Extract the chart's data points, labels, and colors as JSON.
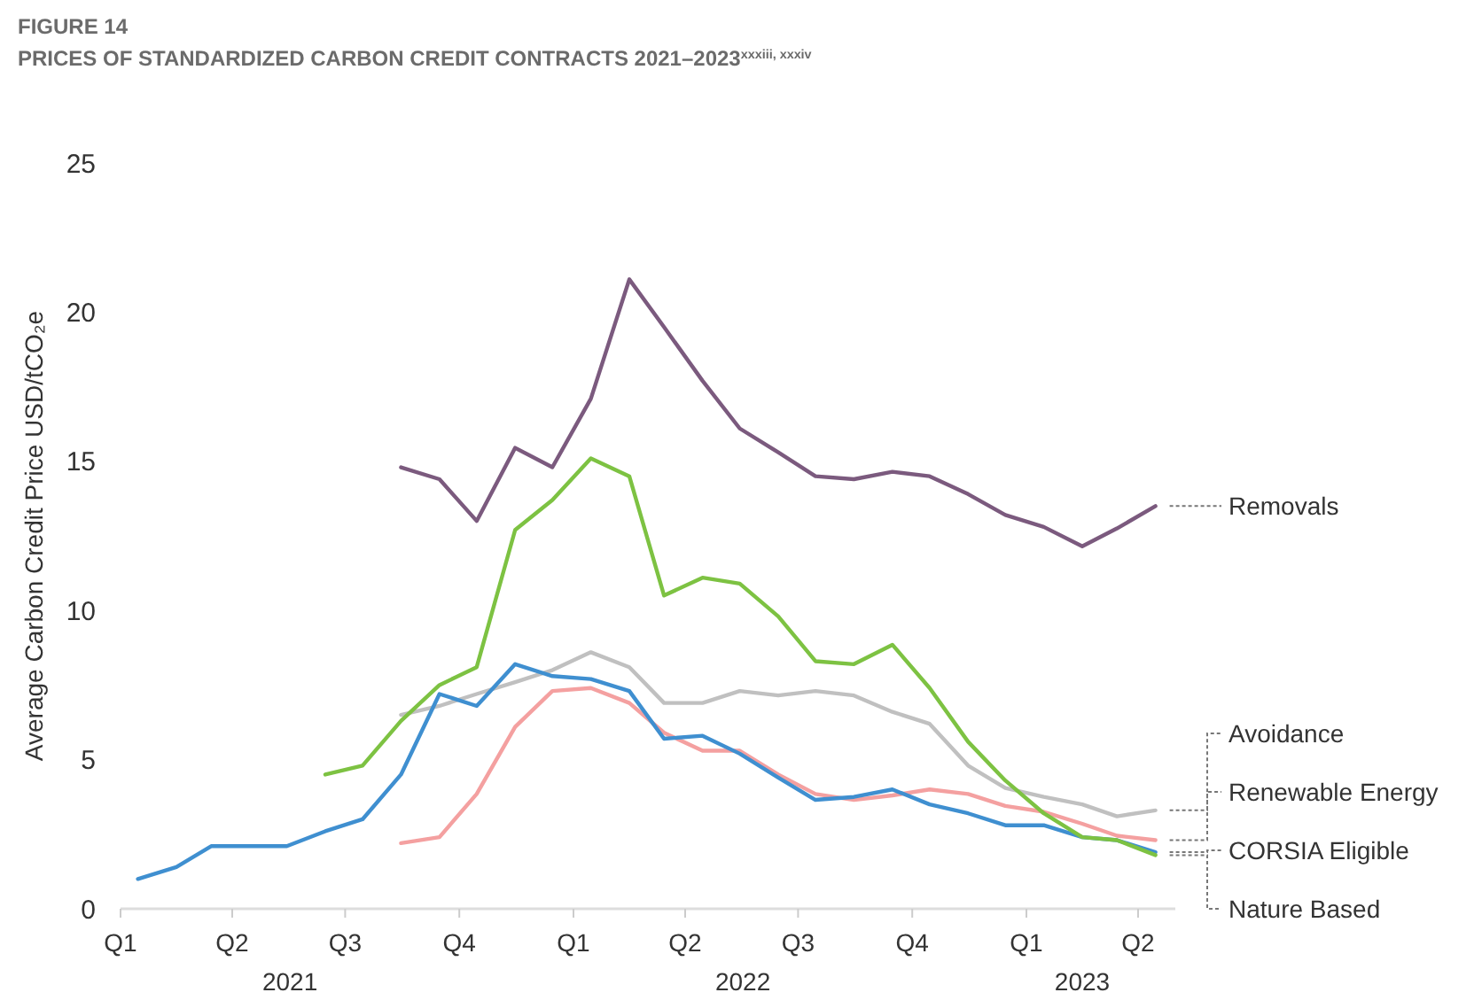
{
  "chart_data": {
    "type": "line",
    "title": "FIGURE 14",
    "subtitle": "PRICES OF STANDARDIZED CARBON CREDIT CONTRACTS 2021–2023$^{xxxiii, xxxiv}$",
    "ylabel": "Average Carbon Credit Price USD/tCO₂e",
    "x": [
      "2021-01-15",
      "2021-02-15",
      "2021-03-15",
      "2021-04-15",
      "2021-05-15",
      "2021-06-15",
      "2021-07-15",
      "2021-08-15",
      "2021-09-15",
      "2021-10-15",
      "2021-11-15",
      "2021-12-15",
      "2022-01-15",
      "2022-02-15",
      "2022-03-15",
      "2022-04-15",
      "2022-05-15",
      "2022-06-15",
      "2022-07-15",
      "2022-08-15",
      "2022-09-15",
      "2022-10-15",
      "2022-11-15",
      "2022-12-15",
      "2023-01-15",
      "2023-02-15",
      "2023-03-15",
      "2023-04-15"
    ],
    "series": [
      {
        "name": "Removals",
        "color": "#7b5a7e",
        "values": [
          null,
          null,
          null,
          null,
          null,
          null,
          null,
          14.8,
          14.4,
          13.0,
          15.45,
          14.8,
          17.1,
          21.1,
          19.5,
          17.7,
          16.1,
          15.3,
          14.5,
          14.4,
          14.65,
          14.5,
          13.9,
          13.2,
          12.8,
          12.15,
          12.75,
          13.5
        ]
      },
      {
        "name": "Avoidance",
        "color": "#c0c0c0",
        "values": [
          null,
          null,
          null,
          null,
          null,
          null,
          null,
          6.5,
          6.8,
          7.2,
          7.6,
          8.0,
          8.6,
          8.1,
          6.9,
          6.9,
          7.3,
          7.15,
          7.3,
          7.15,
          6.6,
          6.2,
          4.8,
          4.05,
          3.75,
          3.5,
          3.1,
          3.3
        ]
      },
      {
        "name": "Renewable Energy",
        "color": "#f4a0a0",
        "values": [
          null,
          null,
          null,
          null,
          null,
          null,
          null,
          2.2,
          2.4,
          3.85,
          6.1,
          7.3,
          7.4,
          6.9,
          5.9,
          5.3,
          5.3,
          4.5,
          3.85,
          3.65,
          3.8,
          4.0,
          3.85,
          3.45,
          3.25,
          2.85,
          2.45,
          2.3
        ]
      },
      {
        "name": "CORSIA Eligible",
        "color": "#3f8fd0",
        "values": [
          1.0,
          1.4,
          2.1,
          2.1,
          2.1,
          2.6,
          3.0,
          4.5,
          7.2,
          6.8,
          8.2,
          7.8,
          7.7,
          7.3,
          5.7,
          5.8,
          5.2,
          4.4,
          3.65,
          3.75,
          4.0,
          3.5,
          3.2,
          2.8,
          2.8,
          2.4,
          2.3,
          1.9
        ]
      },
      {
        "name": "Nature Based",
        "color": "#7dc242",
        "values": [
          null,
          null,
          null,
          null,
          null,
          4.5,
          4.8,
          6.3,
          7.5,
          8.1,
          12.7,
          13.7,
          15.1,
          14.5,
          10.5,
          11.1,
          10.9,
          9.8,
          8.3,
          8.2,
          8.85,
          7.4,
          5.6,
          4.3,
          3.2,
          2.4,
          2.3,
          1.8
        ]
      }
    ],
    "xlim": [
      "2021-01-01",
      "2023-05-01"
    ],
    "xticks": [
      {
        "value": "2021-01-01",
        "label": "Q1"
      },
      {
        "value": "2021-04-01",
        "label": "Q2"
      },
      {
        "value": "2021-07-01",
        "label": "Q3"
      },
      {
        "value": "2021-10-01",
        "label": "Q4"
      },
      {
        "value": "2022-01-01",
        "label": "Q1"
      },
      {
        "value": "2022-04-01",
        "label": "Q2"
      },
      {
        "value": "2022-07-01",
        "label": "Q3"
      },
      {
        "value": "2022-10-01",
        "label": "Q4"
      },
      {
        "value": "2023-01-01",
        "label": "Q1"
      },
      {
        "value": "2023-04-01",
        "label": "Q2"
      }
    ],
    "ylim": [
      0,
      25
    ],
    "yticks": [
      0,
      5,
      10,
      15,
      20,
      25
    ],
    "annotations": [
      "2021",
      "2022",
      "2023"
    ],
    "grid": false,
    "legend": "right",
    "marker": "none",
    "line_style": "solid"
  }
}
